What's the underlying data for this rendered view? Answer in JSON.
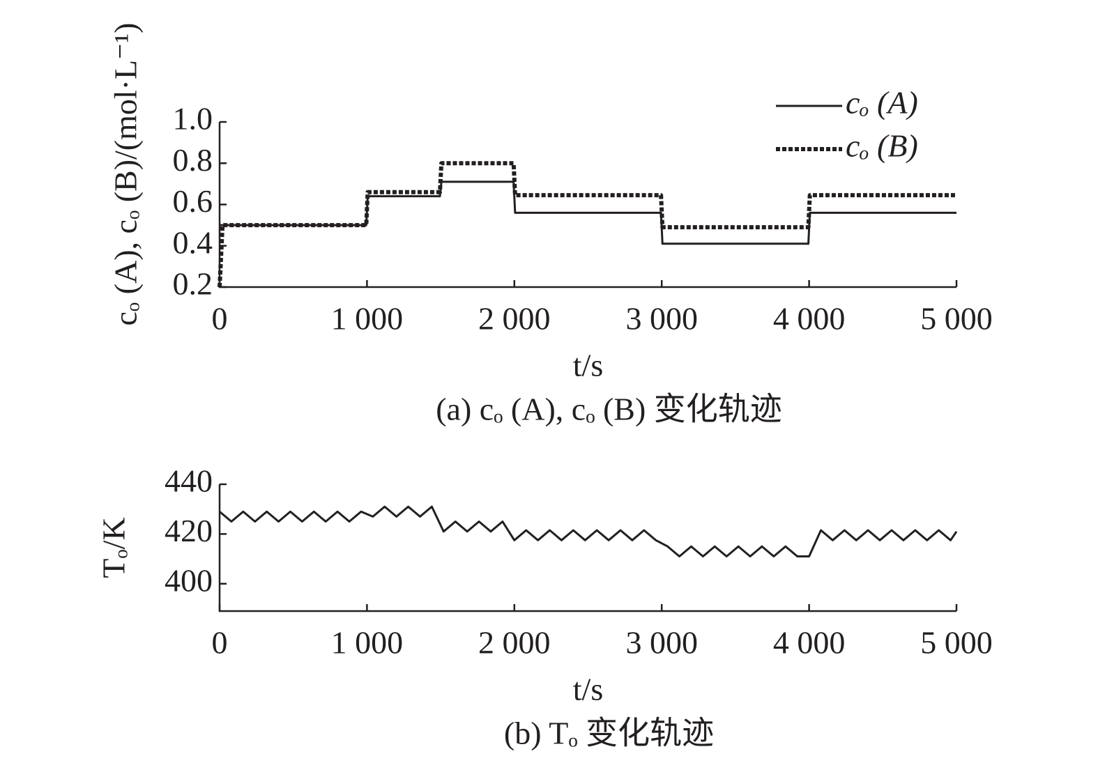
{
  "chart_data": [
    {
      "type": "line",
      "caption": "(a) cₒ (A), cₒ (B) 变化轨迹",
      "x_label": "t/s",
      "y_label": "cₒ (A), cₒ (B)/(mol·L⁻¹)",
      "x": [
        0,
        20,
        995,
        1005,
        1495,
        1505,
        1995,
        2005,
        2995,
        3005,
        3995,
        4005,
        5000
      ],
      "series": [
        {
          "name": "cₒ (A)",
          "color": "#231f20",
          "style": "solid",
          "values": [
            0.5,
            0.5,
            0.5,
            0.64,
            0.64,
            0.71,
            0.71,
            0.56,
            0.56,
            0.41,
            0.41,
            0.56,
            0.56
          ]
        },
        {
          "name": "cₒ (B)",
          "color": "#231f20",
          "style": "dotted",
          "values": [
            0.2,
            0.5,
            0.5,
            0.66,
            0.66,
            0.8,
            0.8,
            0.645,
            0.645,
            0.49,
            0.49,
            0.645,
            0.645
          ]
        }
      ],
      "xlim": [
        0,
        5000
      ],
      "xticks": [
        0,
        {
          "value": 1000,
          "label": "1 000"
        },
        {
          "value": 2000,
          "label": "2 000"
        },
        {
          "value": 3000,
          "label": "3 000"
        },
        {
          "value": 4000,
          "label": "4 000"
        },
        {
          "value": 5000,
          "label": "5 000"
        }
      ],
      "ylim": [
        0.2,
        1
      ],
      "yticks": [
        0.2,
        0.4,
        0.6,
        0.8,
        {
          "value": 1,
          "label": "1.0"
        }
      ],
      "legend": "upper right",
      "grid": false
    },
    {
      "type": "line",
      "caption": "(b) Tₒ 变化轨迹",
      "x_label": "t/s",
      "y_label": "Tₒ/K",
      "x": [
        0,
        80,
        160,
        240,
        320,
        400,
        480,
        560,
        640,
        720,
        800,
        880,
        960,
        1040,
        1120,
        1200,
        1280,
        1360,
        1440,
        1520,
        1600,
        1680,
        1760,
        1840,
        1920,
        2000,
        2080,
        2160,
        2240,
        2320,
        2400,
        2480,
        2560,
        2640,
        2720,
        2800,
        2880,
        2960,
        3040,
        3120,
        3200,
        3280,
        3360,
        3440,
        3520,
        3600,
        3680,
        3760,
        3840,
        3920,
        4000,
        4080,
        4160,
        4240,
        4320,
        4400,
        4480,
        4560,
        4640,
        4720,
        4800,
        4880,
        4960,
        5000
      ],
      "series": [
        {
          "color": "#231f20",
          "style": "solid",
          "values": [
            429,
            425,
            429,
            425,
            429,
            425,
            429,
            425,
            429,
            425,
            429,
            425,
            429,
            427,
            431,
            427,
            431,
            427,
            431,
            421,
            425,
            421,
            425,
            421,
            425,
            417.5,
            421.5,
            417.5,
            421.5,
            417.5,
            421.5,
            417.5,
            421.5,
            417.5,
            421.5,
            417.5,
            421.5,
            417.5,
            415,
            411,
            415,
            411,
            415,
            411,
            415,
            411,
            415,
            411,
            415,
            411,
            411,
            421.5,
            417.5,
            421.5,
            417.5,
            421.5,
            417.5,
            421.5,
            417.5,
            421.5,
            417.5,
            421.5,
            417.5,
            421
          ]
        }
      ],
      "xlim": [
        0,
        5000
      ],
      "xticks": [
        0,
        {
          "value": 1000,
          "label": "1 000"
        },
        {
          "value": 2000,
          "label": "2 000"
        },
        {
          "value": 3000,
          "label": "3 000"
        },
        {
          "value": 4000,
          "label": "4 000"
        },
        {
          "value": 5000,
          "label": "5 000"
        }
      ],
      "ylim": [
        389,
        440
      ],
      "yticks": [
        400,
        420,
        440
      ],
      "grid": false
    }
  ]
}
